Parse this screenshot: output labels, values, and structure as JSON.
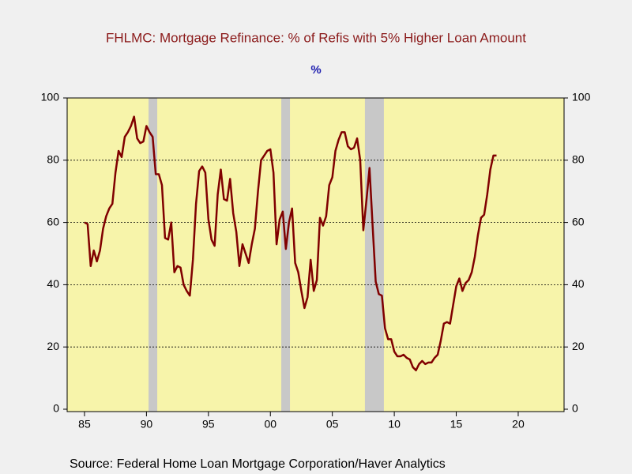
{
  "chart_data": {
    "type": "line",
    "title": "FHLMC: Mortgage Refinance: % of Refis with 5% Higher Loan Amount",
    "subtitle": "%",
    "source": "Source:  Federal Home Loan Mortgage Corporation/Haver Analytics",
    "x": [
      1985,
      1985.25,
      1985.5,
      1985.75,
      1986,
      1986.25,
      1986.5,
      1986.75,
      1987,
      1987.25,
      1987.5,
      1987.75,
      1988,
      1988.25,
      1988.5,
      1988.75,
      1989,
      1989.25,
      1989.5,
      1989.75,
      1990,
      1990.25,
      1990.5,
      1990.75,
      1991,
      1991.25,
      1991.5,
      1991.75,
      1992,
      1992.25,
      1992.5,
      1992.75,
      1993,
      1993.25,
      1993.5,
      1993.75,
      1994,
      1994.25,
      1994.5,
      1994.75,
      1995,
      1995.25,
      1995.5,
      1995.75,
      1996,
      1996.25,
      1996.5,
      1996.75,
      1997,
      1997.25,
      1997.5,
      1997.75,
      1998,
      1998.25,
      1998.5,
      1998.75,
      1999,
      1999.25,
      1999.5,
      1999.75,
      2000,
      2000.25,
      2000.5,
      2000.75,
      2001,
      2001.25,
      2001.5,
      2001.75,
      2002,
      2002.25,
      2002.5,
      2002.75,
      2003,
      2003.25,
      2003.5,
      2003.75,
      2004,
      2004.25,
      2004.5,
      2004.75,
      2005,
      2005.25,
      2005.5,
      2005.75,
      2006,
      2006.25,
      2006.5,
      2006.75,
      2007,
      2007.25,
      2007.5,
      2007.75,
      2008,
      2008.25,
      2008.5,
      2008.75,
      2009,
      2009.25,
      2009.5,
      2009.75,
      2010,
      2010.25,
      2010.5,
      2010.75,
      2011,
      2011.25,
      2011.5,
      2011.75,
      2012,
      2012.25,
      2012.5,
      2012.75,
      2013,
      2013.25,
      2013.5,
      2013.75,
      2014,
      2014.25,
      2014.5,
      2014.75,
      2015,
      2015.25,
      2015.5,
      2015.75,
      2016,
      2016.25,
      2016.5,
      2016.75,
      2017,
      2017.25,
      2017.5,
      2017.75,
      2018,
      2018.25
    ],
    "series": [
      {
        "color": "#800000",
        "values": [
          60,
          59.5,
          46,
          51,
          47.5,
          51,
          58,
          62,
          64.5,
          66,
          76,
          83,
          81,
          87.5,
          89,
          91,
          94,
          87,
          85.5,
          86,
          91,
          89,
          87.5,
          75.5,
          75.5,
          72,
          55,
          54.5,
          60,
          44,
          46,
          45.5,
          40,
          38,
          36.5,
          48,
          66,
          76.5,
          78,
          76,
          61,
          54.5,
          52.5,
          69,
          77,
          67.5,
          67,
          74,
          63,
          57,
          46,
          53,
          50,
          47,
          53,
          58,
          70,
          80,
          81.5,
          83,
          83.5,
          76,
          53,
          61,
          63.5,
          51.5,
          60,
          64.5,
          47,
          44,
          38,
          32.5,
          36,
          48,
          38,
          41.5,
          61.5,
          59,
          62,
          72,
          74.5,
          83,
          86.5,
          89,
          89,
          84.5,
          83.5,
          84,
          87,
          80,
          57.5,
          67,
          77.5,
          59,
          41,
          37,
          36.5,
          26,
          22.5,
          22.5,
          18.5,
          17,
          17,
          17.5,
          16.5,
          16,
          13.5,
          12.5,
          14.5,
          15.5,
          14.5,
          15,
          15,
          16.5,
          17.5,
          22,
          27.5,
          28,
          27.5,
          33.5,
          39.5,
          42,
          38,
          40.5,
          41.5,
          44,
          49,
          56,
          61.5,
          62.5,
          69,
          77,
          81.5,
          81.5
        ]
      }
    ],
    "recessions": [
      [
        1990.17,
        1990.87
      ],
      [
        2000.88,
        2001.58
      ],
      [
        2007.63,
        2009.16
      ]
    ],
    "recession_color": "#c8c8c8",
    "xlim": [
      1983.6,
      2023.7
    ],
    "xticks": [
      {
        "value": 1985,
        "label": "85"
      },
      {
        "value": 1990,
        "label": "90"
      },
      {
        "value": 1995,
        "label": "95"
      },
      {
        "value": 2000,
        "label": "00"
      },
      {
        "value": 2005,
        "label": "05"
      },
      {
        "value": 2010,
        "label": "10"
      },
      {
        "value": 2015,
        "label": "15"
      },
      {
        "value": 2020,
        "label": "20"
      }
    ],
    "ylim": [
      0,
      100
    ],
    "yticks": [
      0,
      20,
      40,
      60,
      80,
      100
    ],
    "y2lim": [
      0,
      100
    ],
    "y2ticks": [
      0,
      20,
      40,
      60,
      80,
      100
    ],
    "grid": true
  }
}
